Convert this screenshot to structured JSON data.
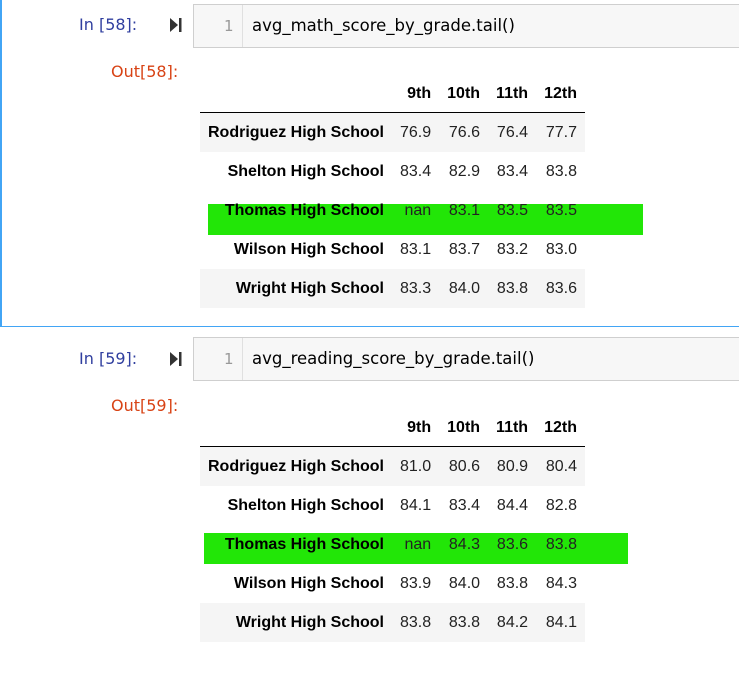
{
  "cells": [
    {
      "in_prompt": "In [58]:",
      "line_number": "1",
      "code": "avg_math_score_by_grade.tail()",
      "out_prompt": "Out[58]:",
      "columns": [
        "9th",
        "10th",
        "11th",
        "12th"
      ],
      "rows": [
        {
          "school": "Rodriguez High School",
          "values": [
            "76.9",
            "76.6",
            "76.4",
            "77.7"
          ]
        },
        {
          "school": "Shelton High School",
          "values": [
            "83.4",
            "82.9",
            "83.4",
            "83.8"
          ]
        },
        {
          "school": "Thomas High School",
          "values": [
            "nan",
            "83.1",
            "83.5",
            "83.5"
          ]
        },
        {
          "school": "Wilson High School",
          "values": [
            "83.1",
            "83.7",
            "83.2",
            "83.0"
          ]
        },
        {
          "school": "Wright High School",
          "values": [
            "83.3",
            "84.0",
            "83.8",
            "83.6"
          ]
        }
      ]
    },
    {
      "in_prompt": "In [59]:",
      "line_number": "1",
      "code": "avg_reading_score_by_grade.tail()",
      "out_prompt": "Out[59]:",
      "columns": [
        "9th",
        "10th",
        "11th",
        "12th"
      ],
      "rows": [
        {
          "school": "Rodriguez High School",
          "values": [
            "81.0",
            "80.6",
            "80.9",
            "80.4"
          ]
        },
        {
          "school": "Shelton High School",
          "values": [
            "84.1",
            "83.4",
            "84.4",
            "82.8"
          ]
        },
        {
          "school": "Thomas High School",
          "values": [
            "nan",
            "84.3",
            "83.6",
            "83.8"
          ]
        },
        {
          "school": "Wilson High School",
          "values": [
            "83.9",
            "84.0",
            "83.8",
            "84.3"
          ]
        },
        {
          "school": "Wright High School",
          "values": [
            "83.8",
            "83.8",
            "84.2",
            "84.1"
          ]
        }
      ]
    }
  ],
  "colors": {
    "highlight": "#22e607",
    "in_prompt": "#303f9f",
    "out_prompt": "#d84315",
    "selection_bar": "#42a5f5"
  },
  "icons": {
    "run": "run-cell-icon"
  }
}
